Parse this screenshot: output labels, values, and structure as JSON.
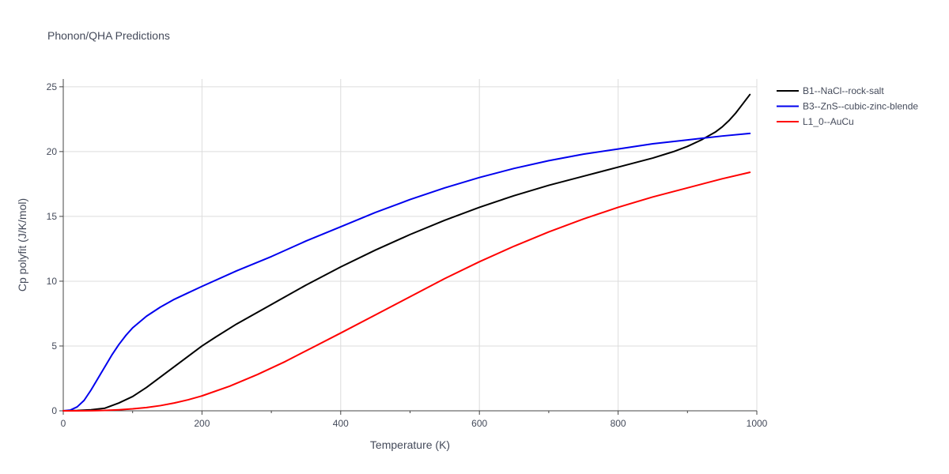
{
  "chart_data": {
    "type": "line",
    "title": "Phonon/QHA Predictions",
    "xlabel": "Temperature (K)",
    "ylabel": "Cp polyfit (J/K/mol)",
    "xlim": [
      0,
      1000
    ],
    "ylim": [
      0,
      25.6
    ],
    "x_ticks": [
      "0",
      "200",
      "400",
      "600",
      "800",
      "1000"
    ],
    "y_ticks": [
      "0",
      "5",
      "10",
      "15",
      "20",
      "25"
    ],
    "grid": true,
    "legend_position": "top-right outside",
    "series": [
      {
        "name": "B1--NaCl--rock-salt",
        "color": "#000000",
        "x": [
          0,
          20,
          40,
          60,
          80,
          100,
          120,
          140,
          160,
          180,
          200,
          220,
          250,
          300,
          350,
          400,
          450,
          500,
          550,
          600,
          650,
          700,
          750,
          800,
          850,
          880,
          900,
          920,
          940,
          950,
          960,
          970,
          980,
          990
        ],
        "y": [
          0,
          0.02,
          0.08,
          0.2,
          0.6,
          1.1,
          1.8,
          2.6,
          3.4,
          4.2,
          5.0,
          5.7,
          6.7,
          8.2,
          9.7,
          11.1,
          12.4,
          13.6,
          14.7,
          15.7,
          16.6,
          17.4,
          18.1,
          18.8,
          19.5,
          20.0,
          20.4,
          20.9,
          21.5,
          21.9,
          22.4,
          23.0,
          23.7,
          24.4
        ]
      },
      {
        "name": "B3--ZnS--cubic-zinc-blende",
        "color": "#0000ee",
        "x": [
          0,
          10,
          20,
          30,
          40,
          50,
          60,
          70,
          80,
          90,
          100,
          120,
          140,
          160,
          180,
          200,
          250,
          300,
          350,
          400,
          450,
          500,
          550,
          600,
          650,
          700,
          750,
          800,
          850,
          900,
          950,
          990
        ],
        "y": [
          0,
          0.05,
          0.3,
          0.8,
          1.6,
          2.5,
          3.4,
          4.3,
          5.1,
          5.8,
          6.4,
          7.3,
          8.0,
          8.6,
          9.1,
          9.6,
          10.8,
          11.9,
          13.1,
          14.2,
          15.3,
          16.3,
          17.2,
          18.0,
          18.7,
          19.3,
          19.8,
          20.2,
          20.6,
          20.9,
          21.2,
          21.4
        ]
      },
      {
        "name": "L1_0--AuCu",
        "color": "#ff0000",
        "x": [
          0,
          20,
          40,
          60,
          80,
          100,
          120,
          140,
          160,
          180,
          200,
          240,
          280,
          320,
          360,
          400,
          450,
          500,
          550,
          600,
          650,
          700,
          750,
          800,
          850,
          900,
          950,
          990
        ],
        "y": [
          0,
          0,
          0.01,
          0.03,
          0.08,
          0.15,
          0.25,
          0.4,
          0.6,
          0.85,
          1.15,
          1.9,
          2.8,
          3.8,
          4.9,
          6.0,
          7.4,
          8.8,
          10.2,
          11.5,
          12.7,
          13.8,
          14.8,
          15.7,
          16.5,
          17.2,
          17.9,
          18.4
        ]
      }
    ]
  }
}
